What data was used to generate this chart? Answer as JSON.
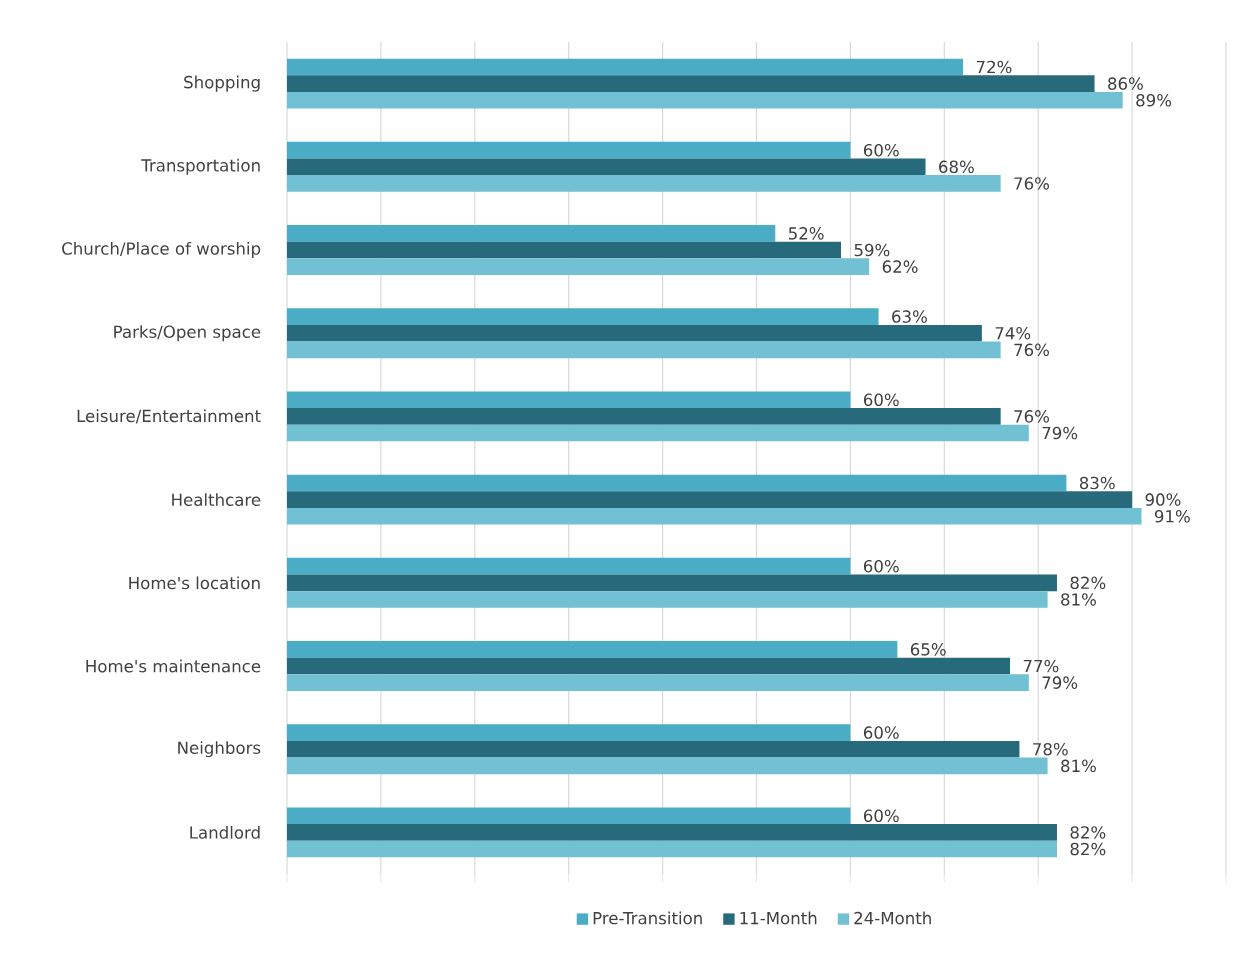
{
  "chart_data": {
    "type": "bar",
    "orientation": "horizontal",
    "categories": [
      "Shopping",
      "Transportation",
      "Church/Place of worship",
      "Parks/Open space",
      "Leisure/Entertainment",
      "Healthcare",
      "Home's location",
      "Home's maintenance",
      "Neighbors",
      "Landlord"
    ],
    "series": [
      {
        "name": "Pre-Transition",
        "color": "#4bacc6",
        "values": [
          72,
          60,
          52,
          63,
          60,
          83,
          60,
          65,
          60,
          60
        ],
        "value_labels": [
          "72%",
          "60%",
          "52%",
          "63%",
          "60%",
          "83%",
          "60%",
          "65%",
          "60%",
          "60%"
        ]
      },
      {
        "name": "11-Month",
        "color": "#276a7c",
        "values": [
          86,
          68,
          59,
          74,
          76,
          90,
          82,
          77,
          78,
          82
        ],
        "value_labels": [
          "86%",
          "68%",
          "59%",
          "74%",
          "76%",
          "90%",
          "82%",
          "77%",
          "78%",
          "82%"
        ]
      },
      {
        "name": "24-Month",
        "color": "#72c0d3",
        "values": [
          89,
          76,
          62,
          76,
          79,
          91,
          81,
          79,
          81,
          82
        ],
        "value_labels": [
          "89%",
          "76%",
          "62%",
          "76%",
          "79%",
          "91%",
          "81%",
          "79%",
          "81%",
          "82%"
        ]
      }
    ],
    "xlim": [
      0,
      100
    ],
    "xticks": [
      {
        "value": 0,
        "label": null
      },
      {
        "value": 10,
        "label": null
      },
      {
        "value": 20,
        "label": null
      },
      {
        "value": 30,
        "label": null
      },
      {
        "value": 40,
        "label": null
      },
      {
        "value": 50,
        "label": null
      },
      {
        "value": 60,
        "label": null
      },
      {
        "value": 70,
        "label": null
      },
      {
        "value": 80,
        "label": null
      },
      {
        "value": 90,
        "label": null
      },
      {
        "value": 100,
        "label": null
      }
    ],
    "grid": "x",
    "legend": "bottom",
    "tick_labels": "y"
  }
}
